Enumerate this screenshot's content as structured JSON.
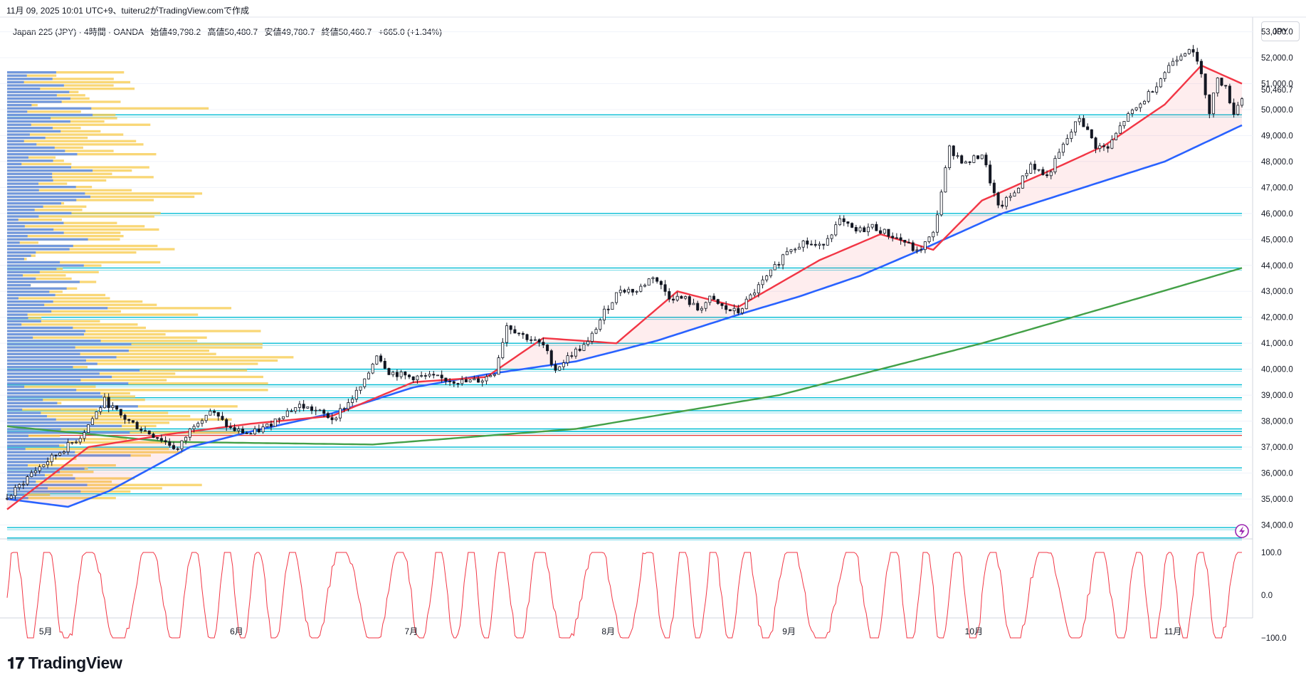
{
  "header": {
    "created": "11月 09, 2025 10:01 UTC+9、tuiteru2がTradingView.comで作成"
  },
  "legend": {
    "symbol": "Japan 225 (JPY) · 4時間 · OANDA",
    "open": "始値49,798.2",
    "high": "高値50,480.7",
    "low": "安値49,780.7",
    "close": "終値50,460.7",
    "change": "+665.0 (+1.34%)"
  },
  "currency_button": "JPY",
  "brand": "TradingView",
  "colors": {
    "candle": "#131722",
    "ema_fast": "#f23645",
    "ema_mid": "#2962ff",
    "ema_slow": "#43a047",
    "level": "#00bcd4",
    "volume_up": "#5b8def",
    "volume_down": "#f7c948",
    "oscillator": "#f23645"
  },
  "chart_data": {
    "type": "line",
    "symbol": "Japan 225 (JPY)",
    "timeframe": "4時間",
    "x_ticks": [
      "5月",
      "6月",
      "7月",
      "8月",
      "9月",
      "10月",
      "11月"
    ],
    "y_ticks": [
      "53,000.0",
      "52,000.0",
      "51,000.0",
      "50,000.0",
      "49,000.0",
      "48,000.0",
      "47,000.0",
      "46,000.0",
      "45,000.0",
      "44,000.0",
      "43,000.0",
      "42,000.0",
      "41,000.0",
      "40,000.0",
      "39,000.0",
      "38,000.0",
      "37,000.0",
      "36,000.0",
      "35,000.0",
      "34,000.0"
    ],
    "ylim": [
      33600,
      53400
    ],
    "last_price": "50,460.7",
    "last_value": 50460.7,
    "price_path": [
      [
        0,
        35000
      ],
      [
        6,
        36000
      ],
      [
        12,
        36700
      ],
      [
        18,
        37400
      ],
      [
        24,
        38800
      ],
      [
        28,
        38200
      ],
      [
        33,
        37700
      ],
      [
        38,
        37300
      ],
      [
        42,
        36900
      ],
      [
        46,
        37900
      ],
      [
        50,
        38400
      ],
      [
        55,
        37700
      ],
      [
        60,
        37500
      ],
      [
        64,
        37800
      ],
      [
        68,
        38300
      ],
      [
        72,
        38600
      ],
      [
        76,
        38400
      ],
      [
        80,
        38100
      ],
      [
        84,
        38700
      ],
      [
        88,
        39500
      ],
      [
        91,
        40600
      ],
      [
        94,
        39900
      ],
      [
        99,
        39700
      ],
      [
        104,
        39700
      ],
      [
        108,
        39600
      ],
      [
        113,
        39500
      ],
      [
        117,
        39600
      ],
      [
        120,
        39900
      ],
      [
        123,
        41700
      ],
      [
        127,
        41300
      ],
      [
        132,
        40900
      ],
      [
        135,
        40000
      ],
      [
        139,
        40600
      ],
      [
        143,
        41000
      ],
      [
        147,
        42200
      ],
      [
        151,
        43100
      ],
      [
        155,
        43000
      ],
      [
        159,
        43600
      ],
      [
        163,
        42800
      ],
      [
        167,
        42700
      ],
      [
        170,
        42300
      ],
      [
        173,
        42700
      ],
      [
        177,
        42300
      ],
      [
        180,
        42200
      ],
      [
        184,
        43000
      ],
      [
        188,
        43700
      ],
      [
        192,
        44600
      ],
      [
        196,
        44900
      ],
      [
        200,
        44700
      ],
      [
        205,
        45700
      ],
      [
        209,
        45300
      ],
      [
        213,
        45500
      ],
      [
        217,
        45200
      ],
      [
        221,
        44900
      ],
      [
        224,
        44500
      ],
      [
        228,
        45200
      ],
      [
        232,
        48500
      ],
      [
        236,
        47900
      ],
      [
        240,
        48300
      ],
      [
        244,
        46200
      ],
      [
        248,
        46800
      ],
      [
        252,
        47900
      ],
      [
        256,
        47400
      ],
      [
        260,
        48600
      ],
      [
        264,
        49700
      ],
      [
        268,
        48600
      ],
      [
        271,
        48500
      ],
      [
        275,
        49600
      ],
      [
        279,
        50200
      ],
      [
        283,
        51000
      ],
      [
        287,
        51900
      ],
      [
        291,
        52400
      ],
      [
        294,
        51500
      ],
      [
        296,
        49800
      ],
      [
        298,
        51300
      ],
      [
        300,
        50800
      ],
      [
        302,
        49900
      ],
      [
        304,
        50460.7
      ]
    ],
    "ema_fast": [
      [
        0,
        34600
      ],
      [
        20,
        37000
      ],
      [
        40,
        37500
      ],
      [
        60,
        37900
      ],
      [
        80,
        38200
      ],
      [
        100,
        39500
      ],
      [
        118,
        39700
      ],
      [
        132,
        41200
      ],
      [
        150,
        41000
      ],
      [
        165,
        43000
      ],
      [
        180,
        42400
      ],
      [
        200,
        44200
      ],
      [
        215,
        45200
      ],
      [
        228,
        44600
      ],
      [
        240,
        46500
      ],
      [
        256,
        47600
      ],
      [
        270,
        48600
      ],
      [
        285,
        50200
      ],
      [
        294,
        51700
      ],
      [
        304,
        51000
      ]
    ],
    "ema_mid": [
      [
        0,
        35000
      ],
      [
        15,
        34700
      ],
      [
        25,
        35300
      ],
      [
        45,
        37000
      ],
      [
        60,
        37600
      ],
      [
        80,
        38300
      ],
      [
        100,
        39300
      ],
      [
        118,
        39800
      ],
      [
        140,
        40300
      ],
      [
        160,
        41100
      ],
      [
        180,
        42100
      ],
      [
        195,
        42800
      ],
      [
        210,
        43600
      ],
      [
        225,
        44600
      ],
      [
        245,
        46000
      ],
      [
        265,
        47000
      ],
      [
        285,
        48000
      ],
      [
        304,
        49400
      ]
    ],
    "ema_slow": [
      [
        0,
        37800
      ],
      [
        40,
        37200
      ],
      [
        90,
        37100
      ],
      [
        140,
        37700
      ],
      [
        190,
        39000
      ],
      [
        240,
        41000
      ],
      [
        280,
        42800
      ],
      [
        304,
        43900
      ]
    ],
    "horizontal_levels": [
      49800,
      46000,
      43900,
      42000,
      41000,
      40000,
      39400,
      38900,
      38400,
      37700,
      37600,
      37000,
      36200,
      35200,
      33900,
      33500
    ],
    "oscillator": {
      "y_ticks": [
        "100.0",
        "0.0",
        "−100.0"
      ],
      "ylim": [
        -100,
        100
      ]
    },
    "volume_profile": "horizontal volume bars on left, blue (up) and yellow (down)"
  }
}
